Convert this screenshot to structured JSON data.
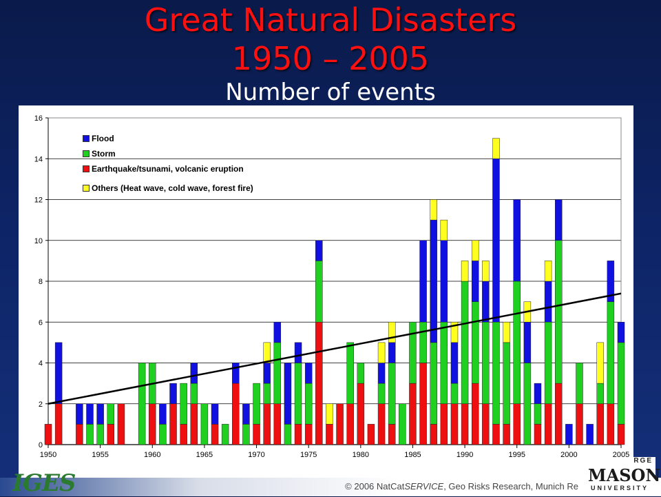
{
  "slide": {
    "title_line1": "Great Natural Disasters",
    "title_line2": "1950 – 2005",
    "subtitle": "Number of events",
    "copyright_prefix": "© 2006 NatCat",
    "copyright_service": "SERVICE",
    "copyright_suffix": ", Geo Risks Research, Munich Re",
    "logo_left_text": "IGES",
    "logo_right_top": "RGE",
    "logo_right_main": "MASON",
    "logo_right_bottom": "UNIVERSITY"
  },
  "colors": {
    "flood": "#1010e0",
    "storm": "#20d020",
    "earthquake": "#ee1010",
    "others": "#ffff20",
    "trend": "#000000"
  },
  "chart_data": {
    "type": "bar",
    "stacked": true,
    "title": "",
    "xlabel": "",
    "ylabel": "",
    "ylim": [
      0,
      16
    ],
    "yticks": [
      0,
      2,
      4,
      6,
      8,
      10,
      12,
      14,
      16
    ],
    "xticks": [
      1950,
      1955,
      1960,
      1965,
      1970,
      1975,
      1980,
      1985,
      1990,
      1995,
      2000,
      2005
    ],
    "grid": true,
    "legend_position": "top-left",
    "x": [
      1950,
      1951,
      1952,
      1953,
      1954,
      1955,
      1956,
      1957,
      1958,
      1959,
      1960,
      1961,
      1962,
      1963,
      1964,
      1965,
      1966,
      1967,
      1968,
      1969,
      1970,
      1971,
      1972,
      1973,
      1974,
      1975,
      1976,
      1977,
      1978,
      1979,
      1980,
      1981,
      1982,
      1983,
      1984,
      1985,
      1986,
      1987,
      1988,
      1989,
      1990,
      1991,
      1992,
      1993,
      1994,
      1995,
      1996,
      1997,
      1998,
      1999,
      2000,
      2001,
      2002,
      2003,
      2004,
      2005
    ],
    "series": [
      {
        "name": "Earthquake/tsunami, volcanic eruption",
        "key": "earthquake",
        "values": [
          1,
          2,
          0,
          1,
          0,
          0,
          1,
          2,
          0,
          0,
          2,
          0,
          2,
          1,
          2,
          0,
          1,
          0,
          3,
          0,
          1,
          2,
          2,
          0,
          1,
          1,
          6,
          1,
          2,
          2,
          3,
          1,
          2,
          1,
          0,
          3,
          4,
          1,
          2,
          2,
          2,
          3,
          2,
          1,
          1,
          2,
          0,
          1,
          2,
          3,
          0,
          2,
          0,
          2,
          2,
          1
        ]
      },
      {
        "name": "Storm",
        "key": "storm",
        "values": [
          0,
          0,
          0,
          0,
          1,
          1,
          1,
          0,
          0,
          4,
          2,
          1,
          0,
          2,
          1,
          2,
          0,
          1,
          0,
          1,
          2,
          1,
          3,
          1,
          3,
          2,
          3,
          0,
          0,
          3,
          1,
          0,
          1,
          3,
          2,
          3,
          2,
          4,
          4,
          1,
          6,
          4,
          4,
          5,
          4,
          6,
          4,
          1,
          4,
          7,
          0,
          2,
          0,
          1,
          5,
          4
        ]
      },
      {
        "name": "Flood",
        "key": "flood",
        "values": [
          0,
          3,
          0,
          1,
          1,
          1,
          0,
          0,
          0,
          0,
          0,
          1,
          1,
          0,
          1,
          0,
          1,
          0,
          1,
          1,
          0,
          1,
          1,
          3,
          1,
          1,
          1,
          0,
          0,
          0,
          0,
          0,
          1,
          1,
          0,
          0,
          4,
          6,
          4,
          2,
          0,
          2,
          2,
          8,
          0,
          4,
          2,
          1,
          2,
          2,
          1,
          0,
          1,
          0,
          2,
          1
        ]
      },
      {
        "name": "Others (Heat wave, cold wave, forest fire)",
        "key": "others",
        "values": [
          0,
          0,
          0,
          0,
          0,
          0,
          0,
          0,
          0,
          0,
          0,
          0,
          0,
          0,
          0,
          0,
          0,
          0,
          0,
          0,
          0,
          1,
          0,
          0,
          0,
          0,
          0,
          1,
          0,
          0,
          0,
          0,
          1,
          1,
          0,
          0,
          0,
          1,
          1,
          1,
          1,
          1,
          1,
          1,
          1,
          0,
          1,
          0,
          1,
          0,
          0,
          0,
          0,
          2,
          0,
          0
        ]
      }
    ],
    "legend_order": [
      "Flood",
      "Storm",
      "Earthquake/tsunami, volcanic eruption",
      "Others (Heat wave, cold wave, forest fire)"
    ],
    "trend": {
      "x_start": 1950,
      "y_start": 2.0,
      "x_end": 2005,
      "y_end": 7.4
    }
  }
}
